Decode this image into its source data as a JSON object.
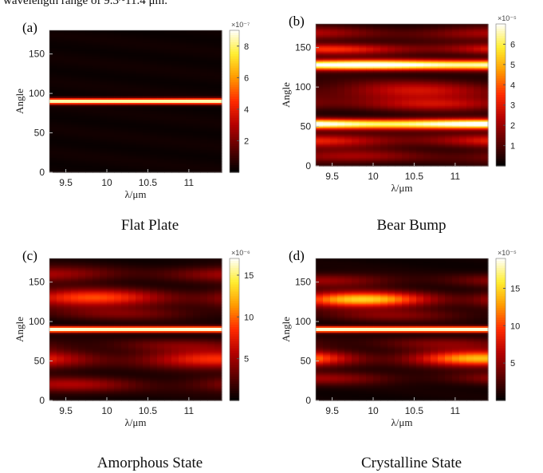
{
  "intro_text": "wavelength range of 9.3~11.4 μm.",
  "colormap": [
    "#000000",
    "#5a0000",
    "#b40000",
    "#ff2a00",
    "#ff9a00",
    "#ffee30",
    "#ffffff"
  ],
  "panels": [
    {
      "label": "(a)",
      "caption": "Flat Plate",
      "multiplier": "×10⁻⁷",
      "cb_ticks": [
        8,
        6,
        4,
        2
      ],
      "cb_max": 9
    },
    {
      "label": "(b)",
      "caption": "Bear Bump",
      "multiplier": "×10⁻⁵",
      "cb_ticks": [
        6,
        5,
        4,
        3,
        2,
        1
      ],
      "cb_max": 7
    },
    {
      "label": "(c)",
      "caption": "Amorphous State",
      "multiplier": "×10⁻⁶",
      "cb_ticks": [
        15,
        10,
        5
      ],
      "cb_max": 17
    },
    {
      "label": "(d)",
      "caption": "Crystalline State",
      "multiplier": "×10⁻⁵",
      "cb_ticks": [
        15,
        10,
        5
      ],
      "cb_max": 19
    }
  ],
  "chart_data": [
    {
      "type": "heatmap",
      "title": "(a) Flat Plate",
      "xlabel": "λ/μm",
      "ylabel": "Angle",
      "xlim": [
        9.3,
        11.4
      ],
      "ylim": [
        0,
        180
      ],
      "xticks": [
        9.5,
        10,
        10.5,
        11
      ],
      "yticks": [
        0,
        50,
        100,
        150
      ],
      "colorbar_scale": "×10⁻⁷",
      "colorbar_range": [
        0,
        9
      ],
      "colorbar_ticks": [
        2,
        4,
        6,
        8
      ],
      "bands": [
        {
          "angle": 90,
          "width": 2.5,
          "value": 8.8,
          "x_var": 0
        }
      ],
      "baseline": 0.3
    },
    {
      "type": "heatmap",
      "title": "(b) Bear Bump",
      "xlabel": "λ/μm",
      "ylabel": "Angle",
      "xlim": [
        9.3,
        11.4
      ],
      "ylim": [
        0,
        180
      ],
      "xticks": [
        9.5,
        10,
        10.5,
        11
      ],
      "yticks": [
        0,
        50,
        100,
        150
      ],
      "colorbar_scale": "×10⁻⁵",
      "colorbar_range": [
        0,
        7
      ],
      "colorbar_ticks": [
        1,
        2,
        3,
        4,
        5,
        6
      ],
      "bands": [
        {
          "angle": 128,
          "width": 4.5,
          "value": 6.8,
          "x_var": 0.1
        },
        {
          "angle": 53,
          "width": 4.5,
          "value": 6.6,
          "x_var": 0.1
        },
        {
          "angle": 148,
          "width": 5,
          "value": 2.2,
          "x_var": 0.4
        },
        {
          "angle": 95,
          "width": 9,
          "value": 1.6,
          "x_var": 0.5
        },
        {
          "angle": 78,
          "width": 6,
          "value": 1.4,
          "x_var": 0.5
        },
        {
          "angle": 32,
          "width": 6,
          "value": 2.0,
          "x_var": 0.4
        },
        {
          "angle": 12,
          "width": 6,
          "value": 1.2,
          "x_var": 0.5
        },
        {
          "angle": 168,
          "width": 6,
          "value": 1.3,
          "x_var": 0.5
        }
      ],
      "baseline": 0.5
    },
    {
      "type": "heatmap",
      "title": "(c) Amorphous State",
      "xlabel": "λ/μm",
      "ylabel": "Angle",
      "xlim": [
        9.3,
        11.4
      ],
      "ylim": [
        0,
        180
      ],
      "xticks": [
        9.5,
        10,
        10.5,
        11
      ],
      "yticks": [
        0,
        50,
        100,
        150
      ],
      "colorbar_scale": "×10⁻⁶",
      "colorbar_range": [
        0,
        17
      ],
      "colorbar_ticks": [
        5,
        10,
        15
      ],
      "bands": [
        {
          "angle": 90,
          "width": 2.5,
          "value": 17,
          "x_var": 0
        },
        {
          "angle": 130,
          "width": 8,
          "value": 5.5,
          "x_var": 0.6
        },
        {
          "angle": 52,
          "width": 8,
          "value": 5.0,
          "x_var": 0.6
        },
        {
          "angle": 160,
          "width": 7,
          "value": 3.0,
          "x_var": 0.6
        },
        {
          "angle": 20,
          "width": 7,
          "value": 3.0,
          "x_var": 0.6
        },
        {
          "angle": 110,
          "width": 6,
          "value": 2.0,
          "x_var": 0.6
        },
        {
          "angle": 70,
          "width": 6,
          "value": 2.0,
          "x_var": 0.6
        }
      ],
      "baseline": 0.8
    },
    {
      "type": "heatmap",
      "title": "(d) Crystalline State",
      "xlabel": "λ/μm",
      "ylabel": "Angle",
      "xlim": [
        9.3,
        11.4
      ],
      "ylim": [
        0,
        180
      ],
      "xticks": [
        9.5,
        10,
        10.5,
        11
      ],
      "yticks": [
        0,
        50,
        100,
        150
      ],
      "colorbar_scale": "×10⁻⁵",
      "colorbar_range": [
        0,
        19
      ],
      "colorbar_ticks": [
        5,
        10,
        15
      ],
      "bands": [
        {
          "angle": 90,
          "width": 2.5,
          "value": 19,
          "x_var": 0
        },
        {
          "angle": 128,
          "width": 7,
          "value": 8.5,
          "x_var": 0.7
        },
        {
          "angle": 53,
          "width": 7,
          "value": 8.0,
          "x_var": 0.7
        },
        {
          "angle": 152,
          "width": 6,
          "value": 3.0,
          "x_var": 0.6
        },
        {
          "angle": 28,
          "width": 6,
          "value": 3.0,
          "x_var": 0.6
        },
        {
          "angle": 108,
          "width": 6,
          "value": 2.5,
          "x_var": 0.6
        },
        {
          "angle": 72,
          "width": 6,
          "value": 2.5,
          "x_var": 0.6
        }
      ],
      "baseline": 0.8
    }
  ]
}
